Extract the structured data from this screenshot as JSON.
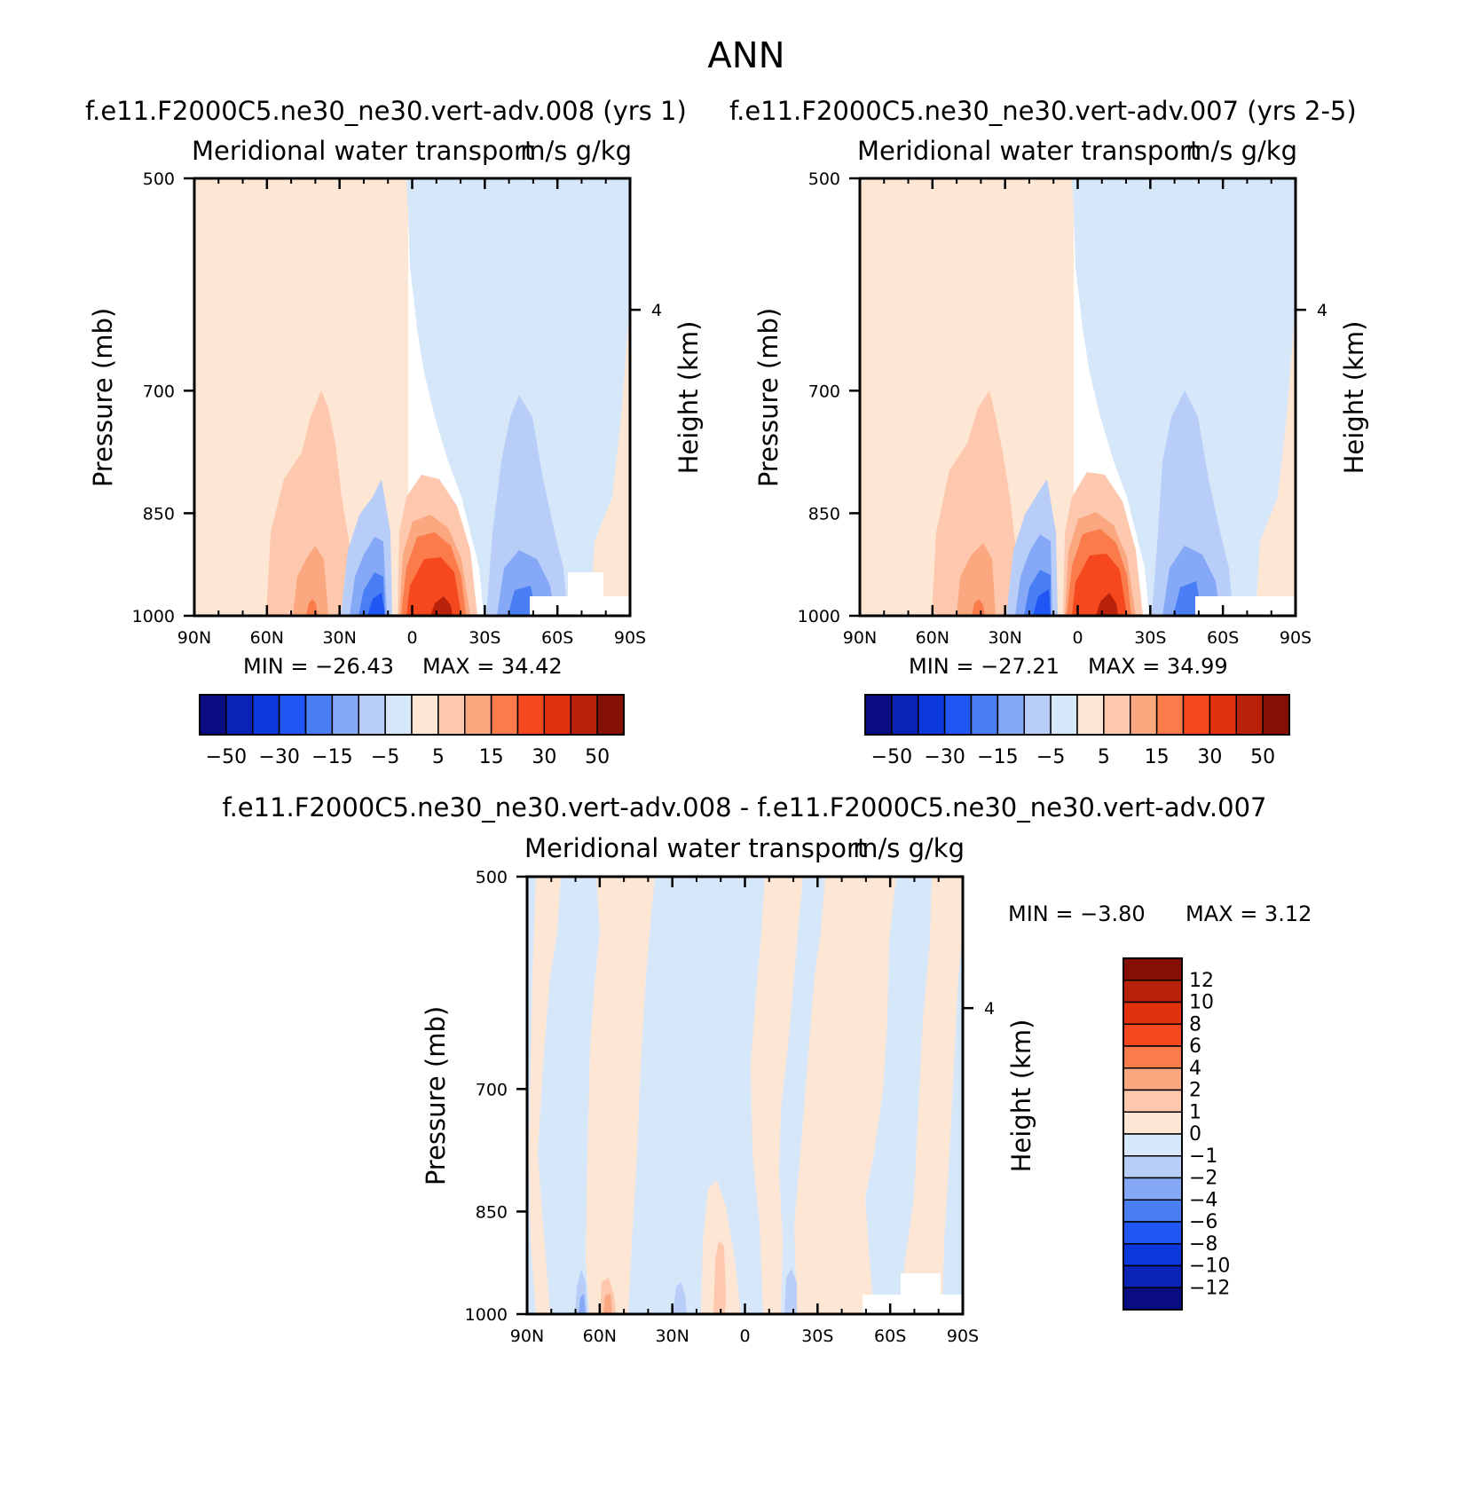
{
  "figure_title": "ANN",
  "colors": {
    "full_palette": [
      "#0a0d82",
      "#0a23b4",
      "#0c37db",
      "#1f56f4",
      "#4a7ef5",
      "#85a8f7",
      "#b8cef9",
      "#d6e7fa",
      "#fde6d3",
      "#fdc8ad",
      "#fba77f",
      "#fb7b4b",
      "#f6481f",
      "#e1320d",
      "#b8220a",
      "#850f05"
    ],
    "diff_palette": [
      "#0a0d82",
      "#0a23b4",
      "#0c37db",
      "#1f56f4",
      "#4a7ef5",
      "#85a8f7",
      "#b8cef9",
      "#d6e7fa",
      "#fde6d3",
      "#fdc8ad",
      "#fba77f",
      "#fb7b4b",
      "#f6481f",
      "#e1320d",
      "#b8220a",
      "#850f05"
    ]
  },
  "chart_data": [
    {
      "type": "heatmap",
      "title": "f.e11.F2000C5.ne30_ne30.vert-adv.008 (yrs 1)",
      "left_string": "Meridional water transport",
      "right_string": "m/s g/kg",
      "xlabel": "",
      "ylabel": "Pressure (mb)",
      "y2label": "Height (km)",
      "x_ticks": [
        "90N",
        "60N",
        "30N",
        "0",
        "30S",
        "60S",
        "90S"
      ],
      "y_ticks": [
        "500",
        "700",
        "850",
        "1000"
      ],
      "y2_ticks": [
        "4"
      ],
      "ylim": [
        1000,
        500
      ],
      "xlim": [
        90,
        -90
      ],
      "min_label": "MIN = -26.43",
      "max_label": "MAX = 34.42",
      "stats": {
        "min": -26.43,
        "max": 34.42
      },
      "colorbar_labels": [
        "-50",
        "-30",
        "-15",
        "-5",
        "5",
        "15",
        "30",
        "50"
      ],
      "colorbar_levels": [
        -50,
        -40,
        -30,
        -20,
        -15,
        -10,
        -5,
        0,
        5,
        10,
        15,
        20,
        30,
        40,
        50
      ]
    },
    {
      "type": "heatmap",
      "title": "f.e11.F2000C5.ne30_ne30.vert-adv.007 (yrs 2-5)",
      "left_string": "Meridional water transport",
      "right_string": "m/s g/kg",
      "xlabel": "",
      "ylabel": "Pressure (mb)",
      "y2label": "Height (km)",
      "x_ticks": [
        "90N",
        "60N",
        "30N",
        "0",
        "30S",
        "60S",
        "90S"
      ],
      "y_ticks": [
        "500",
        "700",
        "850",
        "1000"
      ],
      "y2_ticks": [
        "4"
      ],
      "ylim": [
        1000,
        500
      ],
      "xlim": [
        90,
        -90
      ],
      "min_label": "MIN = -27.21",
      "max_label": "MAX = 34.99",
      "stats": {
        "min": -27.21,
        "max": 34.99
      },
      "colorbar_labels": [
        "-50",
        "-30",
        "-15",
        "-5",
        "5",
        "15",
        "30",
        "50"
      ],
      "colorbar_levels": [
        -50,
        -40,
        -30,
        -20,
        -15,
        -10,
        -5,
        0,
        5,
        10,
        15,
        20,
        30,
        40,
        50
      ]
    },
    {
      "type": "heatmap",
      "title": "f.e11.F2000C5.ne30_ne30.vert-adv.008 - f.e11.F2000C5.ne30_ne30.vert-adv.007",
      "left_string": "Meridional water transport",
      "right_string": "m/s g/kg",
      "xlabel": "",
      "ylabel": "Pressure (mb)",
      "y2label": "Height (km)",
      "x_ticks": [
        "90N",
        "60N",
        "30N",
        "0",
        "30S",
        "60S",
        "90S"
      ],
      "y_ticks": [
        "500",
        "700",
        "850",
        "1000"
      ],
      "y2_ticks": [
        "4"
      ],
      "ylim": [
        1000,
        500
      ],
      "xlim": [
        90,
        -90
      ],
      "min_label": "MIN = -3.80",
      "max_label": "MAX = 3.12",
      "stats": {
        "min": -3.8,
        "max": 3.12
      },
      "colorbar_labels": [
        "12",
        "10",
        "8",
        "6",
        "4",
        "2",
        "1",
        "0",
        "-1",
        "-2",
        "-4",
        "-6",
        "-8",
        "-10",
        "-12"
      ],
      "colorbar_levels": [
        -12,
        -10,
        -8,
        -6,
        -4,
        -2,
        -1,
        0,
        1,
        2,
        4,
        6,
        8,
        10,
        12
      ]
    }
  ]
}
